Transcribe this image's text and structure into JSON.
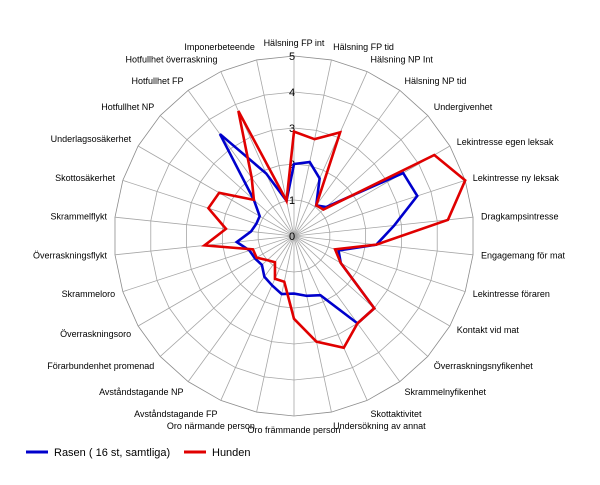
{
  "chart_data": {
    "type": "radar",
    "title": "",
    "categories": [
      "Hälsning FP int",
      "Hälsning FP tid",
      "Hälsning NP Int",
      "Hälsning NP tid",
      "Undergivenhet",
      "Lekintresse egen leksak",
      "Lekintresse ny leksak",
      "Dragkampsintresse",
      "Engagemang för mat",
      "Lekintresse föraren",
      "Kontakt vid mat",
      "Överraskningsnyfikenhet",
      "Skrammelnyfikenhet",
      "Skottaktivitet",
      "Undersökning av annat",
      "Oro främmande person",
      "Oro närmande person",
      "Avståndstagande FP",
      "Avståndstagande NP",
      "Förarbundenhet promenad",
      "Överraskningsoro",
      "Skrammeloro",
      "Överraskningsflykt",
      "Skrammelflykt",
      "Skottosäkerhet",
      "Underlagsosäkerhet",
      "Hotfullhet NP",
      "Hotfullhet FP",
      "Hotfullhet överraskning",
      "Imponerbeteende"
    ],
    "rlim": [
      0,
      5
    ],
    "ticks": [
      0,
      1,
      2,
      3,
      4,
      5
    ],
    "grid": true,
    "legend_position": "bottom-left",
    "series": [
      {
        "name": "Rasen ( 16 st, samtliga)",
        "color": "#0000CC",
        "values": [
          2.0,
          2.1,
          1.75,
          1.05,
          1.2,
          3.5,
          3.6,
          2.8,
          2.3,
          1.3,
          1.5,
          3.0,
          3.0,
          1.8,
          1.7,
          1.6,
          1.65,
          1.5,
          1.4,
          1.2,
          1.25,
          1.3,
          1.6,
          1.2,
          1.1,
          1.1,
          1.5,
          3.5,
          1.9,
          1.0
        ]
      },
      {
        "name": "Hunden",
        "color": "#E00000",
        "values": [
          2.9,
          2.75,
          3.15,
          1.05,
          1.1,
          4.5,
          5.0,
          4.3,
          2.3,
          1.2,
          1.5,
          3.0,
          3.0,
          3.4,
          3.0,
          2.3,
          1.3,
          1.3,
          0.9,
          1.0,
          1.2,
          1.2,
          2.5,
          1.9,
          2.5,
          2.4,
          1.5,
          2.0,
          3.8,
          1.0
        ]
      }
    ]
  }
}
